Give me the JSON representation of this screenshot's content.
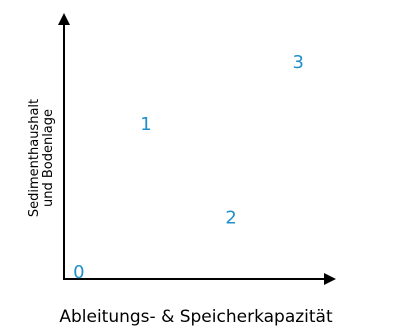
{
  "chart_data": {
    "type": "scatter",
    "title": "",
    "xlabel": "Ableitungs- & Speicherkapazität",
    "ylabel_lines": [
      "Sedimenthaushalt",
      "und Bodenlage"
    ],
    "xlim": [
      0,
      10
    ],
    "ylim": [
      0,
      10
    ],
    "grid": false,
    "legend": "none",
    "point_color": "#1f8fc9",
    "axis_color": "#000000",
    "points": [
      {
        "label": "0",
        "x": 0.2,
        "y": 0.0
      },
      {
        "label": "1",
        "x": 2.8,
        "y": 6.0
      },
      {
        "label": "2",
        "x": 6.1,
        "y": 2.2
      },
      {
        "label": "3",
        "x": 8.7,
        "y": 8.5
      }
    ]
  }
}
